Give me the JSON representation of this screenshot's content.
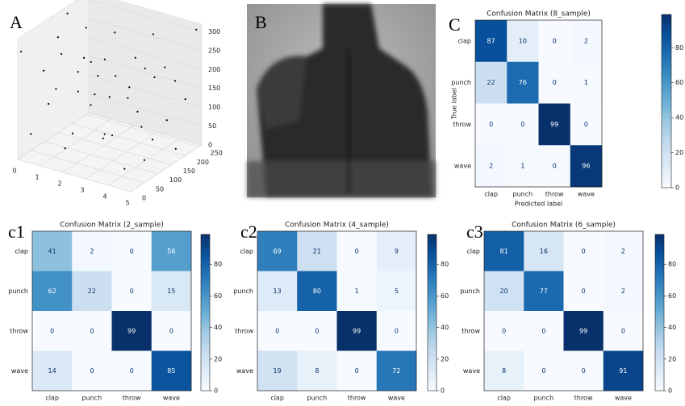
{
  "chart_data": [
    {
      "type": "scatter3d",
      "panel_label": "A",
      "color": "#000000",
      "x": [
        0,
        0,
        0,
        0,
        0,
        0,
        0,
        1,
        1,
        1,
        1,
        1,
        1,
        1,
        2,
        2,
        2,
        2,
        2,
        2,
        2,
        3,
        3,
        3,
        3,
        3,
        3,
        3,
        4,
        4,
        4,
        4,
        4,
        4,
        4,
        5,
        5,
        5,
        5,
        5,
        5,
        5
      ],
      "y": [
        12,
        48,
        95,
        140,
        182,
        221,
        250,
        30,
        77,
        118,
        160,
        199,
        236,
        65,
        8,
        55,
        102,
        147,
        190,
        243,
        128,
        20,
        70,
        110,
        155,
        205,
        248,
        88,
        15,
        60,
        100,
        170,
        215,
        245,
        135,
        25,
        80,
        125,
        165,
        200,
        240,
        50
      ],
      "z": [
        280,
        45,
        190,
        120,
        300,
        75,
        230,
        150,
        260,
        30,
        210,
        95,
        170,
        310,
        60,
        240,
        130,
        20,
        280,
        110,
        195,
        300,
        85,
        220,
        140,
        40,
        265,
        175,
        125,
        15,
        290,
        205,
        70,
        160,
        245,
        200,
        100,
        270,
        35,
        150,
        315,
        60
      ],
      "xlim": [
        0,
        5
      ],
      "ylim": [
        0,
        260
      ],
      "zlim": [
        0,
        320
      ],
      "xticks": [
        0,
        1,
        2,
        3,
        4,
        5
      ],
      "yticks": [
        0,
        50,
        100,
        150,
        200,
        250
      ],
      "zticks": [
        0,
        50,
        100,
        150,
        200,
        250,
        300
      ]
    },
    {
      "type": "image",
      "panel_label": "B"
    },
    {
      "type": "heatmap",
      "panel_label": "C",
      "title": "Confusion Matrix (8_sample)",
      "xlabel": "Predicted label",
      "ylabel": "True label",
      "categories": [
        "clap",
        "punch",
        "throw",
        "wave"
      ],
      "values": [
        [
          87,
          10,
          0,
          2
        ],
        [
          22,
          76,
          0,
          1
        ],
        [
          0,
          0,
          99,
          0
        ],
        [
          2,
          1,
          0,
          96
        ]
      ],
      "clim": [
        0,
        99
      ],
      "colorbar_ticks": [
        0,
        20,
        40,
        60,
        80
      ],
      "colors": [
        "#f7fbff",
        "#deebf7",
        "#c6dbef",
        "#9ecae1",
        "#6baed6",
        "#4292c6",
        "#2171b5",
        "#08519c",
        "#08306b"
      ]
    },
    {
      "type": "heatmap",
      "panel_label": "c1",
      "title": "Confusion Matrix (2_sample)",
      "categories": [
        "clap",
        "punch",
        "throw",
        "wave"
      ],
      "values": [
        [
          41,
          2,
          0,
          56
        ],
        [
          62,
          22,
          0,
          15
        ],
        [
          0,
          0,
          99,
          0
        ],
        [
          14,
          0,
          0,
          85
        ]
      ],
      "clim": [
        0,
        99
      ],
      "colorbar_ticks": [
        0,
        20,
        40,
        60,
        80
      ],
      "colors": [
        "#f7fbff",
        "#deebf7",
        "#c6dbef",
        "#9ecae1",
        "#6baed6",
        "#4292c6",
        "#2171b5",
        "#08519c",
        "#08306b"
      ]
    },
    {
      "type": "heatmap",
      "panel_label": "c2",
      "title": "Confusion Matrix (4_sample)",
      "categories": [
        "clap",
        "punch",
        "throw",
        "wave"
      ],
      "values": [
        [
          69,
          21,
          0,
          9
        ],
        [
          13,
          80,
          1,
          5
        ],
        [
          0,
          0,
          99,
          0
        ],
        [
          19,
          8,
          0,
          72
        ]
      ],
      "clim": [
        0,
        99
      ],
      "colorbar_ticks": [
        0,
        20,
        40,
        60,
        80
      ],
      "colors": [
        "#f7fbff",
        "#deebf7",
        "#c6dbef",
        "#9ecae1",
        "#6baed6",
        "#4292c6",
        "#2171b5",
        "#08519c",
        "#08306b"
      ]
    },
    {
      "type": "heatmap",
      "panel_label": "c3",
      "title": "Confusion Matrix (6_sample)",
      "categories": [
        "clap",
        "punch",
        "throw",
        "wave"
      ],
      "values": [
        [
          81,
          16,
          0,
          2
        ],
        [
          20,
          77,
          0,
          2
        ],
        [
          0,
          0,
          99,
          0
        ],
        [
          8,
          0,
          0,
          91
        ]
      ],
      "clim": [
        0,
        99
      ],
      "colorbar_ticks": [
        0,
        20,
        40,
        60,
        80
      ],
      "colors": [
        "#f7fbff",
        "#deebf7",
        "#c6dbef",
        "#9ecae1",
        "#6baed6",
        "#4292c6",
        "#2171b5",
        "#08519c",
        "#08306b"
      ]
    }
  ]
}
